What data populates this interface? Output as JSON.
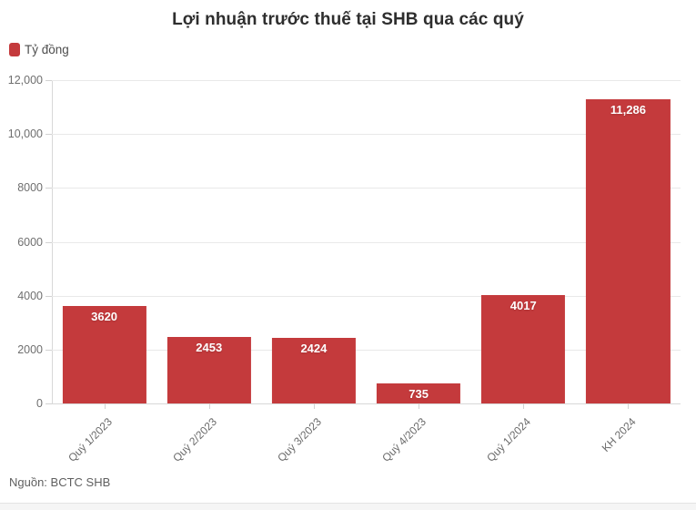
{
  "title": "Lợi nhuận trước thuế tại SHB qua các quý",
  "legend": {
    "label": "Tỷ đồng"
  },
  "source": "Nguồn: BCTC SHB",
  "colors": {
    "bar": "#c43a3c",
    "title_text": "#2e2e2e",
    "axis_text": "#6f6f6f",
    "x_axis_text": "#6a6a6a",
    "legend_text": "#4d4d4d",
    "source_text": "#5f5f5f",
    "gridline": "#e9e9e9",
    "axis_line": "#d8d8d8",
    "value_label": "#ffffff",
    "footer_bg": "#f5f5f5",
    "footer_border": "#e3e3e3",
    "background": "#ffffff"
  },
  "chart_data": {
    "type": "bar",
    "title": "Lợi nhuận trước thuế tại SHB qua các quý",
    "unit": "Tỷ đồng",
    "categories": [
      "Quý 1/2023",
      "Quý 2/2023",
      "Quý 3/2023",
      "Quý 4/2023",
      "Quý 1/2024",
      "KH 2024"
    ],
    "values": [
      3620,
      2453,
      2424,
      735,
      4017,
      11286
    ],
    "value_labels": [
      "3620",
      "2453",
      "2424",
      "735",
      "4017",
      "11,286"
    ],
    "series": [
      {
        "name": "Tỷ đồng",
        "values": [
          3620,
          2453,
          2424,
          735,
          4017,
          11286
        ]
      }
    ],
    "xlabel": "",
    "ylabel": "",
    "ylim": [
      0,
      12000
    ],
    "yticks": [
      0,
      2000,
      4000,
      6000,
      8000,
      10000,
      12000
    ],
    "ytick_labels": [
      "0",
      "2000",
      "4000",
      "6000",
      "8000",
      "10,000",
      "12,000"
    ],
    "grid": true,
    "legend_position": "top-left",
    "x_label_rotation": -45,
    "source_note": "Nguồn: BCTC SHB"
  }
}
